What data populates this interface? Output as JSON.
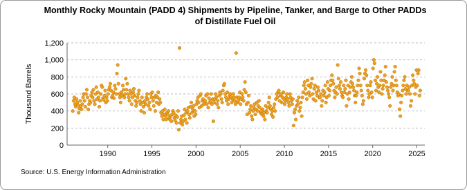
{
  "chart_data": {
    "type": "scatter",
    "title": [
      "Monthly Rocky Mountain (PADD 4) Shipments by Pipeline, Tanker, and Barge to Other PADDs",
      "of Distillate Fuel Oil"
    ],
    "y_label": "Thousand Barrels",
    "source": "Source: U.S. Energy Information Administration",
    "xlim": [
      1985.4,
      2025.9
    ],
    "xticks": [
      1990,
      1995,
      2000,
      2005,
      2010,
      2015,
      2020,
      2025
    ],
    "ylim": [
      0,
      1200
    ],
    "yticks": [
      0,
      200,
      400,
      600,
      800,
      {
        "value": 1000,
        "label": "1,000"
      },
      {
        "value": 1200,
        "label": "1,200"
      }
    ],
    "grid": true,
    "series": [
      {
        "color": "#f0a020",
        "x": [
          1986.04,
          1986.13,
          1986.21,
          1986.29,
          1986.38,
          1986.46,
          1986.54,
          1986.63,
          1986.71,
          1986.79,
          1986.88,
          1986.96,
          1987.04,
          1987.13,
          1987.21,
          1987.29,
          1987.38,
          1987.46,
          1987.54,
          1987.63,
          1987.71,
          1987.79,
          1987.88,
          1987.96,
          1988.04,
          1988.13,
          1988.21,
          1988.29,
          1988.38,
          1988.46,
          1988.54,
          1988.63,
          1988.71,
          1988.79,
          1988.88,
          1988.96,
          1989.04,
          1989.13,
          1989.21,
          1989.29,
          1989.38,
          1989.46,
          1989.54,
          1989.63,
          1989.71,
          1989.79,
          1989.88,
          1989.96,
          1990.04,
          1990.13,
          1990.21,
          1990.29,
          1990.38,
          1990.46,
          1990.54,
          1990.63,
          1990.71,
          1990.79,
          1990.88,
          1990.96,
          1991.04,
          1991.13,
          1991.21,
          1991.29,
          1991.38,
          1991.46,
          1991.54,
          1991.63,
          1991.71,
          1991.79,
          1991.88,
          1991.96,
          1992.04,
          1992.13,
          1992.21,
          1992.29,
          1992.38,
          1992.46,
          1992.54,
          1992.63,
          1992.71,
          1992.79,
          1992.88,
          1992.96,
          1993.04,
          1993.13,
          1993.21,
          1993.29,
          1993.38,
          1993.46,
          1993.54,
          1993.63,
          1993.71,
          1993.79,
          1993.88,
          1993.96,
          1994.04,
          1994.13,
          1994.21,
          1994.29,
          1994.38,
          1994.46,
          1994.54,
          1994.63,
          1994.71,
          1994.79,
          1994.88,
          1994.96,
          1995.04,
          1995.13,
          1995.21,
          1995.29,
          1995.38,
          1995.46,
          1995.54,
          1995.63,
          1995.71,
          1995.79,
          1995.88,
          1995.96,
          1996.04,
          1996.13,
          1996.21,
          1996.29,
          1996.38,
          1996.46,
          1996.54,
          1996.63,
          1996.71,
          1996.79,
          1996.88,
          1996.96,
          1997.04,
          1997.13,
          1997.21,
          1997.29,
          1997.38,
          1997.46,
          1997.54,
          1997.63,
          1997.71,
          1997.79,
          1997.88,
          1997.96,
          1998.04,
          1998.13,
          1998.21,
          1998.29,
          1998.38,
          1998.46,
          1998.54,
          1998.63,
          1998.71,
          1998.79,
          1998.88,
          1998.96,
          1999.04,
          1999.13,
          1999.21,
          1999.29,
          1999.38,
          1999.46,
          1999.54,
          1999.63,
          1999.71,
          1999.79,
          1999.88,
          1999.96,
          2000.04,
          2000.13,
          2000.21,
          2000.29,
          2000.38,
          2000.46,
          2000.54,
          2000.63,
          2000.71,
          2000.79,
          2000.88,
          2000.96,
          2001.04,
          2001.13,
          2001.21,
          2001.29,
          2001.38,
          2001.46,
          2001.54,
          2001.63,
          2001.71,
          2001.79,
          2001.88,
          2001.96,
          2002.04,
          2002.13,
          2002.21,
          2002.29,
          2002.38,
          2002.46,
          2002.54,
          2002.63,
          2002.71,
          2002.79,
          2002.88,
          2002.96,
          2003.04,
          2003.13,
          2003.21,
          2003.29,
          2003.38,
          2003.46,
          2003.54,
          2003.63,
          2003.71,
          2003.79,
          2003.88,
          2003.96,
          2004.04,
          2004.13,
          2004.21,
          2004.29,
          2004.38,
          2004.46,
          2004.54,
          2004.63,
          2004.71,
          2004.79,
          2004.88,
          2004.96,
          2005.04,
          2005.13,
          2005.21,
          2005.29,
          2005.38,
          2005.46,
          2005.54,
          2005.63,
          2005.71,
          2005.79,
          2005.88,
          2005.96,
          2006.04,
          2006.13,
          2006.21,
          2006.29,
          2006.38,
          2006.46,
          2006.54,
          2006.63,
          2006.71,
          2006.79,
          2006.88,
          2006.96,
          2007.04,
          2007.13,
          2007.21,
          2007.29,
          2007.38,
          2007.46,
          2007.54,
          2007.63,
          2007.71,
          2007.79,
          2007.88,
          2007.96,
          2008.04,
          2008.13,
          2008.21,
          2008.29,
          2008.38,
          2008.46,
          2008.54,
          2008.63,
          2008.71,
          2008.79,
          2008.88,
          2008.96,
          2009.04,
          2009.13,
          2009.21,
          2009.29,
          2009.38,
          2009.46,
          2009.54,
          2009.63,
          2009.71,
          2009.79,
          2009.88,
          2009.96,
          2010.04,
          2010.13,
          2010.21,
          2010.29,
          2010.38,
          2010.46,
          2010.54,
          2010.63,
          2010.71,
          2010.79,
          2010.88,
          2010.96,
          2011.04,
          2011.13,
          2011.21,
          2011.29,
          2011.38,
          2011.46,
          2011.54,
          2011.63,
          2011.71,
          2011.79,
          2011.88,
          2011.96,
          2012.04,
          2012.13,
          2012.21,
          2012.29,
          2012.38,
          2012.46,
          2012.54,
          2012.63,
          2012.71,
          2012.79,
          2012.88,
          2012.96,
          2013.04,
          2013.13,
          2013.21,
          2013.29,
          2013.38,
          2013.46,
          2013.54,
          2013.63,
          2013.71,
          2013.79,
          2013.88,
          2013.96,
          2014.04,
          2014.13,
          2014.21,
          2014.29,
          2014.38,
          2014.46,
          2014.54,
          2014.63,
          2014.71,
          2014.79,
          2014.88,
          2014.96,
          2015.04,
          2015.13,
          2015.21,
          2015.29,
          2015.38,
          2015.46,
          2015.54,
          2015.63,
          2015.71,
          2015.79,
          2015.88,
          2015.96,
          2016.04,
          2016.13,
          2016.21,
          2016.29,
          2016.38,
          2016.46,
          2016.54,
          2016.63,
          2016.71,
          2016.79,
          2016.88,
          2016.96,
          2017.04,
          2017.13,
          2017.21,
          2017.29,
          2017.38,
          2017.46,
          2017.54,
          2017.63,
          2017.71,
          2017.79,
          2017.88,
          2017.96,
          2018.04,
          2018.13,
          2018.21,
          2018.29,
          2018.38,
          2018.46,
          2018.54,
          2018.63,
          2018.71,
          2018.79,
          2018.88,
          2018.96,
          2019.04,
          2019.13,
          2019.21,
          2019.29,
          2019.38,
          2019.46,
          2019.54,
          2019.63,
          2019.71,
          2019.79,
          2019.88,
          2019.96,
          2020.04,
          2020.13,
          2020.21,
          2020.29,
          2020.38,
          2020.46,
          2020.54,
          2020.63,
          2020.71,
          2020.79,
          2020.88,
          2020.96,
          2021.04,
          2021.13,
          2021.21,
          2021.29,
          2021.38,
          2021.46,
          2021.54,
          2021.63,
          2021.71,
          2021.79,
          2021.88,
          2021.96,
          2022.04,
          2022.13,
          2022.21,
          2022.29,
          2022.38,
          2022.46,
          2022.54,
          2022.63,
          2022.71,
          2022.79,
          2022.88,
          2022.96,
          2023.04,
          2023.13,
          2023.21,
          2023.29,
          2023.38,
          2023.46,
          2023.54,
          2023.63,
          2023.71,
          2023.79,
          2023.88,
          2023.96,
          2024.04,
          2024.13,
          2024.21,
          2024.29,
          2024.38,
          2024.46,
          2024.54,
          2024.63,
          2024.71,
          2024.79,
          2024.88,
          2024.96,
          2025.04,
          2025.13,
          2025.21,
          2025.29,
          2025.38
        ],
        "values": [
          400,
          520,
          560,
          480,
          450,
          540,
          500,
          470,
          380,
          430,
          520,
          460,
          420,
          480,
          560,
          600,
          520,
          450,
          600,
          650,
          560,
          420,
          480,
          520,
          500,
          580,
          620,
          560,
          650,
          520,
          480,
          600,
          680,
          540,
          620,
          560,
          450,
          520,
          600,
          700,
          680,
          550,
          530,
          580,
          640,
          500,
          560,
          520,
          600,
          650,
          680,
          720,
          640,
          560,
          580,
          620,
          550,
          700,
          660,
          600,
          840,
          940,
          720,
          600,
          560,
          500,
          620,
          580,
          700,
          650,
          560,
          600,
          780,
          650,
          720,
          600,
          560,
          520,
          640,
          600,
          480,
          560,
          620,
          660,
          580,
          520,
          460,
          500,
          560,
          600,
          640,
          520,
          480,
          400,
          560,
          500,
          450,
          380,
          520,
          480,
          560,
          600,
          540,
          460,
          500,
          420,
          600,
          560,
          620,
          520,
          460,
          560,
          400,
          580,
          500,
          560,
          620,
          480,
          540,
          500,
          380,
          340,
          400,
          300,
          360,
          420,
          340,
          300,
          380,
          360,
          400,
          320,
          300,
          340,
          280,
          360,
          400,
          380,
          320,
          290,
          350,
          260,
          330,
          400,
          180,
          1140,
          260,
          300,
          340,
          240,
          280,
          350,
          420,
          300,
          380,
          260,
          400,
          440,
          360,
          320,
          450,
          500,
          380,
          420,
          460,
          340,
          400,
          360,
          480,
          520,
          560,
          500,
          440,
          580,
          600,
          460,
          520,
          540,
          480,
          500,
          520,
          580,
          480,
          600,
          440,
          550,
          500,
          520,
          600,
          480,
          540,
          280,
          500,
          540,
          600,
          560,
          480,
          520,
          440,
          580,
          620,
          600,
          540,
          500,
          640,
          700,
          720,
          600,
          560,
          520,
          620,
          480,
          540,
          580,
          600,
          560,
          500,
          540,
          600,
          560,
          520,
          480,
          1080,
          560,
          500,
          520,
          560,
          620,
          480,
          540,
          600,
          560,
          520,
          650,
          740,
          620,
          480,
          360,
          500,
          580,
          380,
          420,
          460,
          340,
          300,
          400,
          440,
          480,
          360,
          420,
          500,
          400,
          460,
          520,
          440,
          380,
          400,
          360,
          420,
          340,
          380,
          300,
          460,
          400,
          380,
          440,
          500,
          560,
          460,
          420,
          360,
          400,
          330,
          440,
          480,
          400,
          540,
          600,
          560,
          620,
          640,
          520,
          580,
          600,
          500,
          560,
          620,
          540,
          480,
          520,
          560,
          600,
          540,
          500,
          460,
          600,
          560,
          520,
          480,
          540,
          230,
          380,
          420,
          300,
          460,
          520,
          480,
          560,
          400,
          440,
          500,
          340,
          560,
          620,
          700,
          740,
          660,
          600,
          540,
          760,
          700,
          620,
          580,
          680,
          720,
          780,
          600,
          540,
          660,
          700,
          520,
          620,
          580,
          680,
          640,
          560,
          560,
          600,
          460,
          520,
          640,
          580,
          620,
          700,
          500,
          560,
          740,
          660,
          580,
          640,
          700,
          760,
          820,
          760,
          720,
          640,
          560,
          620,
          680,
          600,
          940,
          780,
          700,
          660,
          740,
          620,
          580,
          560,
          700,
          620,
          660,
          760,
          460,
          600,
          700,
          540,
          620,
          680,
          740,
          800,
          720,
          680,
          640,
          580,
          500,
          580,
          620,
          700,
          760,
          900,
          840,
          700,
          640,
          580,
          480,
          520,
          780,
          840,
          880,
          820,
          700,
          640,
          560,
          600,
          700,
          740,
          620,
          560,
          900,
          1000,
          960,
          760,
          640,
          720,
          800,
          680,
          620,
          700,
          860,
          760,
          600,
          660,
          700,
          760,
          820,
          920,
          740,
          680,
          640,
          600,
          560,
          460,
          680,
          720,
          800,
          640,
          700,
          860,
          920,
          760,
          700,
          620,
          580,
          600,
          420,
          340,
          500,
          580,
          640,
          700,
          760,
          800,
          660,
          600,
          700,
          640,
          640,
          680,
          600,
          460,
          520,
          700,
          820,
          760,
          720,
          600,
          680,
          880,
          700,
          840,
          880,
          580,
          640
        ]
      }
    ]
  }
}
